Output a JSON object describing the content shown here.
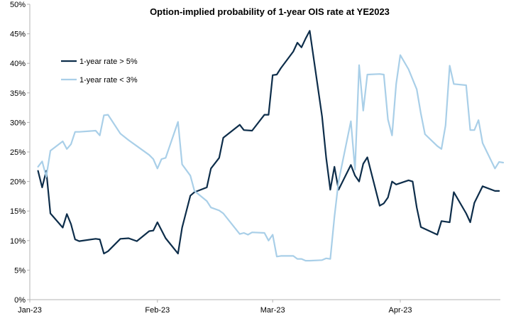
{
  "chart_data": {
    "type": "line",
    "title": "Option-implied probability of 1-year OIS rate at YE2023",
    "xlabel": "",
    "ylabel": "",
    "x_axis": {
      "type": "date",
      "range": [
        "2023-01-01",
        "2023-04-30"
      ],
      "tick_labels": [
        "Jan-23",
        "Feb-23",
        "Mar-23",
        "Apr-23"
      ],
      "tick_dates": [
        "2023-01-01",
        "2023-02-01",
        "2023-03-01",
        "2023-04-01"
      ]
    },
    "y_axis": {
      "range": [
        0,
        50
      ],
      "unit": "%",
      "tick_labels": [
        "0%",
        "5%",
        "10%",
        "15%",
        "20%",
        "25%",
        "30%",
        "35%",
        "40%",
        "45%",
        "50%"
      ],
      "tick_values": [
        0,
        5,
        10,
        15,
        20,
        25,
        30,
        35,
        40,
        45,
        50
      ]
    },
    "grid": false,
    "legend_position": "top-left",
    "series": [
      {
        "name": "1-year rate > 5%",
        "color": "#0d2d4a",
        "points": [
          [
            "2023-01-03",
            21.8
          ],
          [
            "2023-01-04",
            19.0
          ],
          [
            "2023-01-05",
            21.8
          ],
          [
            "2023-01-06",
            14.6
          ],
          [
            "2023-01-09",
            12.2
          ],
          [
            "2023-01-10",
            14.5
          ],
          [
            "2023-01-11",
            12.8
          ],
          [
            "2023-01-12",
            10.2
          ],
          [
            "2023-01-13",
            9.9
          ],
          [
            "2023-01-17",
            10.3
          ],
          [
            "2023-01-18",
            10.2
          ],
          [
            "2023-01-19",
            7.8
          ],
          [
            "2023-01-20",
            8.2
          ],
          [
            "2023-01-23",
            10.3
          ],
          [
            "2023-01-25",
            10.4
          ],
          [
            "2023-01-27",
            9.9
          ],
          [
            "2023-01-30",
            11.6
          ],
          [
            "2023-01-31",
            11.7
          ],
          [
            "2023-02-01",
            13.1
          ],
          [
            "2023-02-03",
            10.4
          ],
          [
            "2023-02-06",
            7.8
          ],
          [
            "2023-02-07",
            12.2
          ],
          [
            "2023-02-09",
            17.6
          ],
          [
            "2023-02-10",
            18.2
          ],
          [
            "2023-02-13",
            19.0
          ],
          [
            "2023-02-14",
            22.2
          ],
          [
            "2023-02-16",
            24.0
          ],
          [
            "2023-02-17",
            27.4
          ],
          [
            "2023-02-21",
            29.6
          ],
          [
            "2023-02-22",
            28.7
          ],
          [
            "2023-02-24",
            28.6
          ],
          [
            "2023-02-27",
            31.3
          ],
          [
            "2023-02-28",
            31.3
          ],
          [
            "2023-03-01",
            38.0
          ],
          [
            "2023-03-02",
            38.1
          ],
          [
            "2023-03-03",
            39.2
          ],
          [
            "2023-03-06",
            42.0
          ],
          [
            "2023-03-07",
            43.5
          ],
          [
            "2023-03-08",
            42.7
          ],
          [
            "2023-03-09",
            44.2
          ],
          [
            "2023-03-10",
            45.5
          ],
          [
            "2023-03-13",
            31.0
          ],
          [
            "2023-03-14",
            24.0
          ],
          [
            "2023-03-15",
            18.6
          ],
          [
            "2023-03-16",
            22.5
          ],
          [
            "2023-03-17",
            18.6
          ],
          [
            "2023-03-20",
            22.8
          ],
          [
            "2023-03-21",
            21.0
          ],
          [
            "2023-03-22",
            20.0
          ],
          [
            "2023-03-23",
            23.0
          ],
          [
            "2023-03-24",
            24.1
          ],
          [
            "2023-03-27",
            15.9
          ],
          [
            "2023-03-28",
            16.3
          ],
          [
            "2023-03-29",
            17.3
          ],
          [
            "2023-03-30",
            20.0
          ],
          [
            "2023-03-31",
            19.5
          ],
          [
            "2023-04-03",
            20.2
          ],
          [
            "2023-04-04",
            20.0
          ],
          [
            "2023-04-05",
            15.6
          ],
          [
            "2023-04-06",
            12.3
          ],
          [
            "2023-04-10",
            11.0
          ],
          [
            "2023-04-11",
            13.3
          ],
          [
            "2023-04-12",
            13.2
          ],
          [
            "2023-04-13",
            13.1
          ],
          [
            "2023-04-14",
            18.2
          ],
          [
            "2023-04-17",
            14.6
          ],
          [
            "2023-04-18",
            13.1
          ],
          [
            "2023-04-19",
            16.4
          ],
          [
            "2023-04-21",
            19.2
          ],
          [
            "2023-04-24",
            18.4
          ],
          [
            "2023-04-25",
            18.4
          ]
        ]
      },
      {
        "name": "1-year rate < 3%",
        "color": "#a9cfe8",
        "points": [
          [
            "2023-01-03",
            22.5
          ],
          [
            "2023-01-04",
            23.4
          ],
          [
            "2023-01-05",
            20.8
          ],
          [
            "2023-01-06",
            25.2
          ],
          [
            "2023-01-09",
            26.8
          ],
          [
            "2023-01-10",
            25.5
          ],
          [
            "2023-01-11",
            26.3
          ],
          [
            "2023-01-12",
            28.4
          ],
          [
            "2023-01-13",
            28.4
          ],
          [
            "2023-01-17",
            28.6
          ],
          [
            "2023-01-18",
            27.8
          ],
          [
            "2023-01-19",
            31.2
          ],
          [
            "2023-01-20",
            31.3
          ],
          [
            "2023-01-23",
            28.1
          ],
          [
            "2023-01-25",
            27.0
          ],
          [
            "2023-01-27",
            26.0
          ],
          [
            "2023-01-30",
            24.5
          ],
          [
            "2023-01-31",
            23.8
          ],
          [
            "2023-02-01",
            22.2
          ],
          [
            "2023-02-02",
            23.8
          ],
          [
            "2023-02-03",
            24.0
          ],
          [
            "2023-02-06",
            30.1
          ],
          [
            "2023-02-07",
            22.9
          ],
          [
            "2023-02-09",
            21.0
          ],
          [
            "2023-02-10",
            18.4
          ],
          [
            "2023-02-13",
            16.7
          ],
          [
            "2023-02-14",
            15.6
          ],
          [
            "2023-02-16",
            15.1
          ],
          [
            "2023-02-17",
            14.6
          ],
          [
            "2023-02-21",
            11.1
          ],
          [
            "2023-02-22",
            11.3
          ],
          [
            "2023-02-23",
            11.0
          ],
          [
            "2023-02-24",
            11.4
          ],
          [
            "2023-02-27",
            11.3
          ],
          [
            "2023-02-28",
            10.0
          ],
          [
            "2023-03-01",
            11.0
          ],
          [
            "2023-03-02",
            7.3
          ],
          [
            "2023-03-03",
            7.4
          ],
          [
            "2023-03-06",
            7.4
          ],
          [
            "2023-03-07",
            6.9
          ],
          [
            "2023-03-08",
            6.9
          ],
          [
            "2023-03-09",
            6.6
          ],
          [
            "2023-03-10",
            6.6
          ],
          [
            "2023-03-13",
            6.7
          ],
          [
            "2023-03-14",
            7.0
          ],
          [
            "2023-03-15",
            6.9
          ],
          [
            "2023-03-16",
            14.0
          ],
          [
            "2023-03-17",
            20.0
          ],
          [
            "2023-03-20",
            30.2
          ],
          [
            "2023-03-21",
            22.0
          ],
          [
            "2023-03-22",
            39.7
          ],
          [
            "2023-03-23",
            32.0
          ],
          [
            "2023-03-24",
            38.1
          ],
          [
            "2023-03-27",
            38.2
          ],
          [
            "2023-03-28",
            38.1
          ],
          [
            "2023-03-29",
            30.5
          ],
          [
            "2023-03-30",
            27.8
          ],
          [
            "2023-03-31",
            36.5
          ],
          [
            "2023-04-01",
            41.4
          ],
          [
            "2023-04-03",
            39.0
          ],
          [
            "2023-04-05",
            35.6
          ],
          [
            "2023-04-06",
            31.5
          ],
          [
            "2023-04-07",
            28.0
          ],
          [
            "2023-04-10",
            26.0
          ],
          [
            "2023-04-11",
            25.5
          ],
          [
            "2023-04-12",
            29.5
          ],
          [
            "2023-04-13",
            39.6
          ],
          [
            "2023-04-14",
            36.5
          ],
          [
            "2023-04-17",
            36.3
          ],
          [
            "2023-04-18",
            28.7
          ],
          [
            "2023-04-19",
            28.7
          ],
          [
            "2023-04-20",
            30.4
          ],
          [
            "2023-04-21",
            26.5
          ],
          [
            "2023-04-24",
            22.2
          ],
          [
            "2023-04-25",
            23.3
          ],
          [
            "2023-04-26",
            23.2
          ]
        ]
      }
    ]
  }
}
